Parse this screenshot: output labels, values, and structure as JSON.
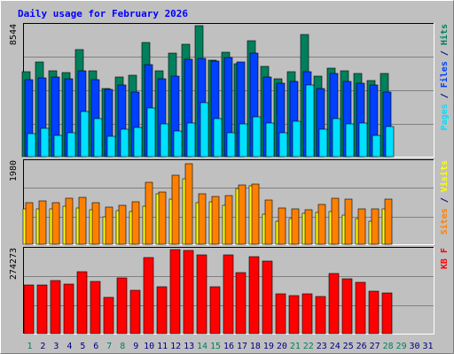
{
  "chart_data": {
    "type": "bar",
    "title": "Daily usage for February 2026",
    "days": [
      "1",
      "2",
      "3",
      "4",
      "5",
      "6",
      "7",
      "8",
      "9",
      "10",
      "11",
      "12",
      "13",
      "14",
      "15",
      "16",
      "17",
      "18",
      "19",
      "20",
      "21",
      "22",
      "23",
      "24",
      "25",
      "26",
      "27",
      "28",
      "29",
      "30",
      "31"
    ],
    "weekend_days": [
      1,
      7,
      8,
      14,
      15,
      21,
      22,
      28,
      29
    ],
    "hits_panel": {
      "max_label": "8544",
      "ymax": 8544,
      "series": [
        {
          "name": "Hits",
          "color": "#00805c",
          "values": [
            5520,
            6170,
            5600,
            5480,
            7000,
            5600,
            4460,
            5180,
            5300,
            7440,
            5620,
            6760,
            7340,
            8544,
            6280,
            6840,
            6060,
            7540,
            5880,
            5080,
            5520,
            7940,
            5240,
            5800,
            5600,
            5440,
            4960,
            5400
          ]
        },
        {
          "name": "Files",
          "color": "#0040ff",
          "values": [
            5000,
            5160,
            5200,
            5060,
            5580,
            5000,
            4400,
            4660,
            4220,
            6000,
            5060,
            5280,
            6360,
            6400,
            6260,
            6480,
            6180,
            6780,
            5180,
            4800,
            4920,
            5540,
            4460,
            5400,
            4920,
            4780,
            4660,
            4200
          ]
        },
        {
          "name": "Pages",
          "color": "#00e0ff",
          "values": [
            1520,
            1860,
            1400,
            1540,
            2960,
            2480,
            1350,
            1790,
            1920,
            3200,
            2130,
            1700,
            2170,
            3500,
            2460,
            1550,
            2130,
            2600,
            2170,
            1560,
            2300,
            4650,
            1800,
            2500,
            2150,
            2200,
            1400,
            1960
          ]
        }
      ],
      "axis_label": [
        {
          "text": "Pages",
          "color": "#00e0ff"
        },
        {
          "text": " / ",
          "color": "#000080"
        },
        {
          "text": "Files",
          "color": "#0040ff"
        },
        {
          "text": " / ",
          "color": "#000080"
        },
        {
          "text": "Hits",
          "color": "#00805c"
        }
      ]
    },
    "visits_panel": {
      "max_label": "1980",
      "ymax": 1980,
      "series": [
        {
          "name": "Visits",
          "color": "#ffff00",
          "values": [
            850,
            850,
            860,
            920,
            880,
            820,
            660,
            800,
            790,
            910,
            1220,
            1080,
            1580,
            1010,
            1020,
            930,
            1350,
            1410,
            720,
            560,
            610,
            740,
            760,
            780,
            710,
            620,
            560,
            860
          ]
        },
        {
          "name": "Sites",
          "color": "#ff8000",
          "values": [
            1000,
            1050,
            990,
            1100,
            1130,
            1010,
            890,
            940,
            1030,
            1490,
            1260,
            1660,
            1940,
            1210,
            1150,
            1180,
            1430,
            1440,
            1070,
            880,
            850,
            840,
            960,
            1110,
            1090,
            850,
            850,
            1080
          ]
        }
      ],
      "axis_label": [
        {
          "text": "Sites",
          "color": "#ff8000"
        },
        {
          "text": " / ",
          "color": "#000080"
        },
        {
          "text": "Visits",
          "color": "#ffff00"
        }
      ]
    },
    "kbytes_panel": {
      "max_label": "274273",
      "ymax": 274273,
      "series": [
        {
          "name": "KB F",
          "color": "#ff0000",
          "values": [
            160000,
            160000,
            173000,
            162000,
            201000,
            170000,
            117000,
            181000,
            141000,
            247000,
            153000,
            274273,
            272000,
            257000,
            153000,
            258000,
            200000,
            250000,
            237000,
            131000,
            124000,
            131000,
            120000,
            196000,
            179000,
            167000,
            140000,
            134000
          ]
        }
      ],
      "axis_label": [
        {
          "text": "KB F",
          "color": "#ff0000"
        }
      ]
    }
  }
}
